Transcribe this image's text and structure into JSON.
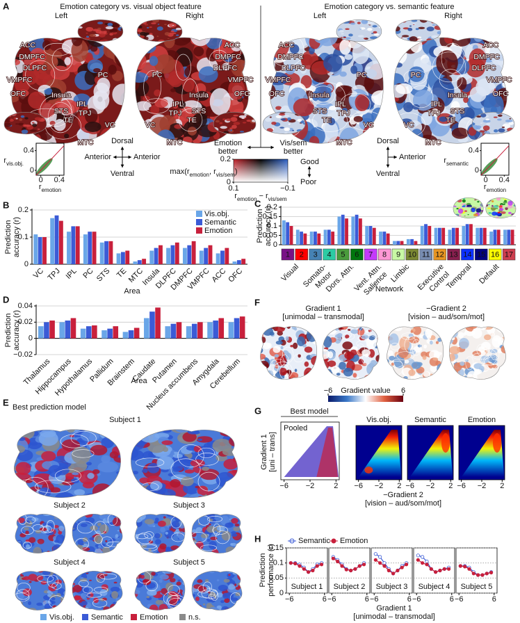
{
  "panel_letters": [
    "A",
    "B",
    "C",
    "D",
    "E",
    "F",
    "G",
    "H"
  ],
  "panel_a": {
    "titles": [
      "Emotion category vs. visual object feature",
      "Emotion category vs. semantic feature"
    ],
    "hemispheres": [
      "Left",
      "Right"
    ],
    "roi_labels": [
      "ACC",
      "DMPFC",
      "DLPFC",
      "VMPFC",
      "OFC",
      "Insula",
      "PC",
      "IPL",
      "TPJ",
      "STS",
      "TE",
      "VC",
      "MTC"
    ],
    "orientation": [
      "Dorsal",
      "Anterior",
      "Ventral"
    ],
    "comparison": [
      [
        "Emotion",
        "better"
      ],
      [
        "Vis/sem",
        "better"
      ]
    ],
    "colorbar": {
      "ylabel": [
        "max(r",
        "emotion",
        ", r",
        "vis/sem",
        ")"
      ],
      "xlabel": [
        "r",
        "emotion",
        " − r",
        "vis/sem"
      ],
      "ylim": [
        0,
        0.2
      ],
      "yticks": [
        0,
        0.2
      ],
      "xlim": [
        0.1,
        -0.1
      ],
      "xticks": [
        0.1,
        {
          "value": -0.1,
          "label": "−0.1"
        }
      ],
      "quality": [
        "Good",
        "Poor"
      ]
    },
    "insets": [
      {
        "ylabel": [
          "r",
          "vis.obj."
        ],
        "xlabel": [
          "r",
          "emotion"
        ],
        "xlim": [
          -0.1,
          0.5
        ],
        "ylim": [
          -0.1,
          0.55
        ],
        "xticks": [
          0,
          0.4
        ],
        "yticks": [
          0,
          0.4
        ]
      },
      {
        "ylabel": [
          "r",
          "semantic"
        ],
        "xlabel": [
          "r",
          "emotion"
        ],
        "xlim": [
          -0.1,
          0.5
        ],
        "ylim": [
          -0.1,
          0.55
        ],
        "xticks": [
          0,
          0.4
        ],
        "yticks": [
          0,
          0.4
        ]
      }
    ]
  },
  "chart_data": [
    {
      "type": "bar",
      "ylabel": [
        "Prediction",
        "accuracy (r)"
      ],
      "xlabel": "Area",
      "categories": [
        "VC",
        "TPJ",
        "IPL",
        "PC",
        "STS",
        "TE",
        "MTC",
        "Insula",
        "DLPFC",
        "DMPFC",
        "VMPFC",
        "ACC",
        "OFC"
      ],
      "series": [
        {
          "name": "Vis.obj.",
          "color": "#6aa6e8",
          "values": [
            0.11,
            0.17,
            0.12,
            0.11,
            0.08,
            0.04,
            0.01,
            0.05,
            0.06,
            0.06,
            0.05,
            0.04,
            0.01
          ]
        },
        {
          "name": "Semantic",
          "color": "#3b5bd6",
          "values": [
            0.1,
            0.18,
            0.14,
            0.12,
            0.085,
            0.045,
            0.015,
            0.06,
            0.07,
            0.07,
            0.06,
            0.05,
            0.015
          ]
        },
        {
          "name": "Emotion",
          "color": "#c8203c",
          "values": [
            0.1,
            0.16,
            0.14,
            0.12,
            0.085,
            0.05,
            0.02,
            0.07,
            0.08,
            0.085,
            0.07,
            0.06,
            0.02
          ]
        }
      ],
      "ylim": [
        0,
        0.2
      ],
      "yticks": [
        0,
        0.1,
        0.2
      ],
      "grid": true,
      "legend": "upper right"
    },
    {
      "type": "bar",
      "ylabel": [
        "Prediction",
        "accuracy (r)"
      ],
      "xlabel": "Network",
      "categories": [
        "1",
        "2",
        "3",
        "4",
        "5",
        "6",
        "7",
        "8",
        "9",
        "10",
        "11",
        "12",
        "13",
        "14",
        "15",
        "16",
        "17"
      ],
      "category_colors": [
        "#781286",
        "#ff0000",
        "#4682b4",
        "#2ccca4",
        "#4a9b3c",
        "#00760e",
        "#c43afa",
        "#ff98d5",
        "#c8f8a4",
        "#7a8732",
        "#778cb0",
        "#e69422",
        "#871f4e",
        "#0c30ff",
        "#000080",
        "#ffff00",
        "#cd3e4e"
      ],
      "groups": [
        [
          "Visual"
        ],
        [
          "Somato-",
          "Motor"
        ],
        [
          "Dors. Attn."
        ],
        [
          "Vent. Attn.",
          "Salience"
        ],
        [
          "Limbic"
        ],
        [
          "Executive",
          "Control"
        ],
        [
          "Temporal"
        ],
        [
          "Default"
        ]
      ],
      "series": [
        {
          "name": "Vis.obj.",
          "color": "#6aa6e8",
          "values": [
            0.13,
            0.08,
            0.07,
            0.08,
            0.15,
            0.15,
            0.1,
            0.07,
            0.02,
            0.03,
            0.1,
            0.09,
            0.08,
            0.1,
            0.09,
            0.07,
            0.08
          ]
        },
        {
          "name": "Semantic",
          "color": "#3b5bd6",
          "values": [
            0.12,
            0.07,
            0.07,
            0.08,
            0.16,
            0.16,
            0.1,
            0.07,
            0.02,
            0.03,
            0.11,
            0.09,
            0.09,
            0.11,
            0.09,
            0.08,
            0.08
          ]
        },
        {
          "name": "Emotion",
          "color": "#c8203c",
          "values": [
            0.1,
            0.06,
            0.06,
            0.07,
            0.14,
            0.14,
            0.09,
            0.06,
            0.02,
            0.02,
            0.1,
            0.09,
            0.09,
            0.11,
            0.09,
            0.08,
            0.08
          ]
        }
      ],
      "ylim": [
        0,
        0.2
      ],
      "yticks": [
        0,
        0.05,
        0.1,
        0.15,
        0.2
      ],
      "grid": true
    },
    {
      "type": "bar",
      "ylabel": [
        "Prediction",
        "accuracy (r)"
      ],
      "xlabel": "Area",
      "categories": [
        "Thalamus",
        "Hippocampus",
        "Hypothalamus",
        "Pallidum",
        "Brainstem",
        "Caudate",
        "Putamen",
        "Nucleus accumbens",
        "Amygdala",
        "Cerebellum"
      ],
      "series": [
        {
          "name": "Vis.obj.",
          "color": "#6aa6e8",
          "values": [
            0.015,
            0.02,
            0.012,
            0.01,
            0.008,
            0.025,
            0.015,
            0.015,
            0.02,
            0.02
          ]
        },
        {
          "name": "Semantic",
          "color": "#3b5bd6",
          "values": [
            0.02,
            0.022,
            0.015,
            0.012,
            0.01,
            0.033,
            0.018,
            0.018,
            0.022,
            0.025
          ]
        },
        {
          "name": "Emotion",
          "color": "#c8203c",
          "values": [
            0.022,
            0.025,
            0.016,
            0.015,
            0.013,
            0.038,
            0.02,
            0.02,
            0.025,
            0.027
          ]
        }
      ],
      "ylim": [
        -0.02,
        0.04
      ],
      "yticks": [
        {
          "value": -0.02,
          "label": "−0.02"
        },
        0,
        0.02,
        0.04
      ],
      "grid": true
    },
    {
      "type": "line",
      "ylabel": [
        "Prediction",
        "performance (r)"
      ],
      "xlabel": [
        "Gradient 1",
        "[unimodal – transmodal]"
      ],
      "x": [
        -5.5,
        -4,
        -2.5,
        -1,
        0.5,
        2,
        3.5,
        5
      ],
      "xlim": [
        -7,
        7
      ],
      "xticks": [
        {
          "value": -6,
          "label": "−6"
        },
        6
      ],
      "ylim": [
        0,
        0.15
      ],
      "yticks": [
        0,
        0.05,
        0.1,
        0.15
      ],
      "grid": true,
      "series": [
        {
          "name": "Semantic",
          "color": "#3b5bd6"
        },
        {
          "name": "Emotion",
          "color": "#c8203c"
        }
      ],
      "subplots": [
        {
          "title": "Subject 1",
          "values": [
            [
              0.1,
              0.1,
              0.095,
              0.085,
              0.07,
              0.08,
              0.095,
              0.1
            ],
            [
              0.1,
              0.098,
              0.09,
              0.08,
              0.07,
              0.075,
              0.09,
              0.095
            ]
          ]
        },
        {
          "title": "Subject 2",
          "values": [
            [
              0.12,
              0.11,
              0.095,
              0.08,
              0.075,
              0.08,
              0.09,
              0.1
            ],
            [
              0.115,
              0.105,
              0.09,
              0.078,
              0.075,
              0.08,
              0.09,
              0.095
            ]
          ]
        },
        {
          "title": "Subject 3",
          "values": [
            [
              0.13,
              0.12,
              0.1,
              0.08,
              0.065,
              0.075,
              0.09,
              0.1
            ],
            [
              0.11,
              0.1,
              0.09,
              0.075,
              0.065,
              0.075,
              0.085,
              0.095
            ]
          ]
        },
        {
          "title": "Subject 4",
          "values": [
            [
              0.125,
              0.12,
              0.105,
              0.08,
              0.07,
              0.075,
              0.08,
              0.085
            ],
            [
              0.11,
              0.1,
              0.095,
              0.08,
              0.07,
              0.075,
              0.08,
              0.08
            ]
          ]
        },
        {
          "title": "Subject 5",
          "values": [
            [
              0.09,
              0.09,
              0.085,
              0.07,
              0.06,
              0.06,
              0.065,
              0.07
            ],
            [
              0.09,
              0.088,
              0.08,
              0.065,
              0.06,
              0.06,
              0.065,
              0.068
            ]
          ]
        }
      ]
    }
  ],
  "panel_e": {
    "title": "Best prediction model",
    "subjects": [
      "Subject 1",
      "Subject 2",
      "Subject 3",
      "Subject 4",
      "Subject 5"
    ],
    "legend": [
      {
        "name": "Vis.obj.",
        "color": "#6aa6e8"
      },
      {
        "name": "Semantic",
        "color": "#3b5bd6"
      },
      {
        "name": "Emotion",
        "color": "#c8203c"
      },
      {
        "name": "n.s.",
        "color": "#8a8a8a"
      }
    ]
  },
  "panel_f": {
    "maps": [
      [
        "Gradient 1",
        "[unimodal – transmodal]"
      ],
      [
        "−Gradient 2",
        "[vision – aud/som/mot]"
      ]
    ],
    "colorbar": {
      "label": "Gradient value",
      "lim": [
        -6,
        6
      ],
      "ticks": [
        {
          "value": -6,
          "label": "−6"
        },
        6
      ]
    }
  },
  "panel_g": {
    "title": "Best model",
    "pooled": "Pooled",
    "models": [
      "Vis.obj.",
      "Semantic",
      "Emotion"
    ],
    "ylabel": [
      "Gradient 1",
      "[uni – trans]"
    ],
    "xlabel": [
      "−Gradient 2",
      "[vision – aud/som/mot]"
    ],
    "xlim": [
      -6.5,
      2.5
    ],
    "xticks": [
      {
        "value": -6,
        "label": "−6"
      },
      {
        "value": -2,
        "label": "−2"
      },
      2
    ]
  }
}
